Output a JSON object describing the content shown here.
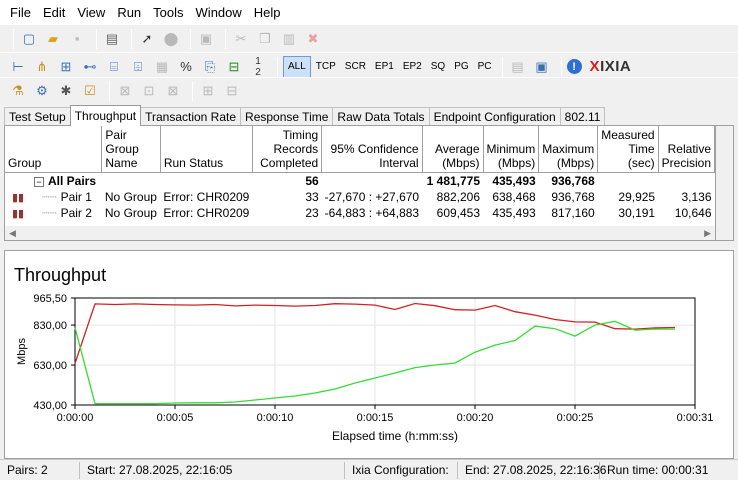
{
  "menu": [
    "File",
    "Edit",
    "View",
    "Run",
    "Tools",
    "Window",
    "Help"
  ],
  "toolbar": {
    "row1_icons": [
      "new-file-icon",
      "open-folder-icon",
      "save-icon",
      "print-icon",
      "run-icon",
      "stop-icon",
      "refresh-icon",
      "cut-icon",
      "copy-icon",
      "paste-icon",
      "delete-icon"
    ],
    "row2_icons": [
      "pair-add-icon",
      "multicast-icon",
      "endpoint-icon",
      "network-icon",
      "script-icon",
      "edit-script-icon",
      "filter-icon",
      "percent-icon",
      "export-icon",
      "count-icon"
    ],
    "filters": [
      "ALL",
      "TCP",
      "SCR",
      "EP1",
      "EP2",
      "SQ",
      "PG",
      "PC"
    ],
    "active_filter": "ALL",
    "row2_end_icons": [
      "report-icon",
      "save-report-icon",
      "info-icon"
    ],
    "logo": {
      "brand_x": "X",
      "brand_rest": "IXIA"
    },
    "row3_icons": [
      "wizard-icon",
      "chart-config-icon",
      "tools-icon",
      "checklist-icon",
      "expand-icon",
      "collapse-icon",
      "expand-all-icon",
      "collapse-all-icon",
      "group-icon",
      "ungroup-icon"
    ]
  },
  "tabs": [
    "Test Setup",
    "Throughput",
    "Transaction Rate",
    "Response Time",
    "Raw Data Totals",
    "Endpoint Configuration",
    "802.11"
  ],
  "active_tab": "Throughput",
  "grid": {
    "headers": [
      "Group",
      "Pair Group Name",
      "Run Status",
      "Timing Records Completed",
      "95% Confidence Interval",
      "Average (Mbps)",
      "Minimum (Mbps)",
      "Maximum (Mbps)",
      "Measured Time (sec)",
      "Relative Precision"
    ],
    "all_pairs": {
      "label": "All Pairs",
      "records": "56",
      "average": "1 481,775",
      "minimum": "435,493",
      "maximum": "936,768"
    },
    "rows": [
      {
        "pair": "Pair 1",
        "group": "No Group",
        "status": "Error:  CHR0209",
        "records": "33",
        "ci": "-27,670 : +27,670",
        "average": "882,206",
        "minimum": "638,468",
        "maximum": "936,768",
        "time": "29,925",
        "precision": "3,136"
      },
      {
        "pair": "Pair 2",
        "group": "No Group",
        "status": "Error:  CHR0209",
        "records": "23",
        "ci": "-64,883 : +64,883",
        "average": "609,453",
        "minimum": "435,493",
        "maximum": "817,160",
        "time": "30,191",
        "precision": "10,646"
      }
    ]
  },
  "chart_title": "Throughput",
  "chart_data": {
    "type": "line",
    "title": "Throughput",
    "xlabel": "Elapsed time (h:mm:ss)",
    "ylabel": "Mbps",
    "xlim": [
      0,
      31
    ],
    "ylim": [
      430,
      965.5
    ],
    "y_ticks": [
      "965,50",
      "830,00",
      "630,00",
      "430,00"
    ],
    "y_tick_values": [
      965.5,
      830,
      630,
      430
    ],
    "x_ticks": [
      "0:00:00",
      "0:00:05",
      "0:00:10",
      "0:00:15",
      "0:00:20",
      "0:00:25",
      "0:00:31"
    ],
    "x_tick_values": [
      0,
      5,
      10,
      15,
      20,
      25,
      31
    ],
    "grid": true,
    "series": [
      {
        "color": "#d42020",
        "x": [
          0,
          1,
          2,
          3,
          4,
          5,
          6,
          7,
          8,
          9,
          10,
          11,
          12,
          13,
          14,
          15,
          16,
          17,
          18,
          19,
          20,
          21,
          22,
          23,
          24,
          25,
          26,
          27,
          28,
          29,
          30
        ],
        "y": [
          638,
          936,
          933,
          936,
          933,
          931,
          930,
          933,
          926,
          930,
          928,
          925,
          928,
          937,
          935,
          930,
          908,
          938,
          927,
          907,
          905,
          928,
          897,
          880,
          858,
          846,
          845,
          812,
          810,
          816,
          818
        ]
      },
      {
        "color": "#33dd33",
        "x": [
          0,
          1,
          2,
          3,
          4,
          5,
          6,
          7,
          8,
          9,
          10,
          11,
          12,
          13,
          14,
          15,
          16,
          17,
          18,
          19,
          20,
          21,
          22,
          23,
          24,
          25,
          26,
          27,
          28,
          29,
          30
        ],
        "y": [
          817,
          437,
          437,
          437,
          437,
          440,
          441,
          441,
          445,
          455,
          465,
          475,
          490,
          510,
          540,
          565,
          590,
          617,
          630,
          640,
          694,
          730,
          753,
          825,
          812,
          775,
          830,
          849,
          805,
          810,
          810
        ]
      }
    ]
  },
  "status": {
    "pairs": "Pairs: 2",
    "start": "Start: 27.08.2025, 22:16:05",
    "ixia_config": "Ixia Configuration:",
    "end": "End: 27.08.2025, 22:16:36",
    "runtime": "Run time: 00:00:31"
  }
}
